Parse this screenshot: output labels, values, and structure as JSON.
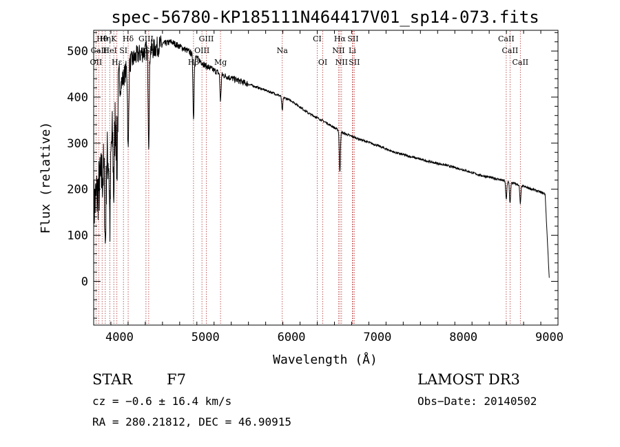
{
  "chart_data": {
    "type": "line",
    "title": "spec-56780-KP185111N464417V01_sp14-073.fits",
    "xlabel": "Wavelength (Å)",
    "ylabel": "Flux (relative)",
    "xlim": [
      3700,
      9100
    ],
    "ylim": [
      -95,
      545
    ],
    "xticks": [
      4000,
      5000,
      6000,
      7000,
      8000,
      9000
    ],
    "yticks": [
      0,
      100,
      200,
      300,
      400,
      500
    ],
    "grid": false,
    "series": [
      {
        "name": "flux",
        "continuum": [
          [
            3700,
            160
          ],
          [
            3800,
            230
          ],
          [
            3900,
            290
          ],
          [
            4000,
            420
          ],
          [
            4100,
            470
          ],
          [
            4200,
            490
          ],
          [
            4300,
            500
          ],
          [
            4400,
            505
          ],
          [
            4500,
            515
          ],
          [
            4600,
            520
          ],
          [
            4700,
            510
          ],
          [
            4800,
            500
          ],
          [
            4900,
            485
          ],
          [
            5000,
            468
          ],
          [
            5200,
            448
          ],
          [
            5500,
            428
          ],
          [
            5800,
            408
          ],
          [
            6000,
            392
          ],
          [
            6200,
            365
          ],
          [
            6400,
            345
          ],
          [
            6600,
            322
          ],
          [
            6800,
            308
          ],
          [
            7000,
            295
          ],
          [
            7200,
            280
          ],
          [
            7400,
            270
          ],
          [
            7600,
            260
          ],
          [
            7800,
            252
          ],
          [
            8000,
            242
          ],
          [
            8200,
            230
          ],
          [
            8400,
            222
          ],
          [
            8600,
            212
          ],
          [
            8800,
            200
          ],
          [
            8950,
            190
          ],
          [
            9000,
            0
          ]
        ],
        "absorption": [
          [
            3835,
            170
          ],
          [
            3889,
            160
          ],
          [
            3934,
            140
          ],
          [
            3970,
            130
          ],
          [
            4101,
            190
          ],
          [
            4340,
            200
          ],
          [
            4861,
            140
          ],
          [
            5175,
            60
          ],
          [
            5893,
            30
          ],
          [
            6563,
            90
          ],
          [
            8498,
            40
          ],
          [
            8542,
            45
          ],
          [
            8662,
            40
          ]
        ]
      }
    ],
    "lines": [
      {
        "label": "Hθ",
        "x": 3798,
        "row": 0
      },
      {
        "label": "Hη",
        "x": 3835,
        "row": 0
      },
      {
        "label": "K",
        "x": 3934,
        "row": 0
      },
      {
        "label": "Hδ",
        "x": 4101,
        "row": 0
      },
      {
        "label": "GIII",
        "x": 4308,
        "row": 0
      },
      {
        "label": "GIII",
        "x": 5010,
        "row": 0
      },
      {
        "label": "CI",
        "x": 6300,
        "row": 0
      },
      {
        "label": "Hα",
        "x": 6563,
        "row": 0
      },
      {
        "label": "SII",
        "x": 6716,
        "row": 0
      },
      {
        "label": "CaII",
        "x": 8498,
        "row": 0
      },
      {
        "label": "CaII",
        "x": 3760,
        "row": 1
      },
      {
        "label": "HeI",
        "x": 3889,
        "row": 1
      },
      {
        "label": "SI",
        "x": 4046,
        "row": 1
      },
      {
        "label": "Gr",
        "x": 4340,
        "row": 1
      },
      {
        "label": "OIII",
        "x": 4959,
        "row": 1
      },
      {
        "label": "Na",
        "x": 5893,
        "row": 1
      },
      {
        "label": "NII",
        "x": 6548,
        "row": 1
      },
      {
        "label": "Li",
        "x": 6708,
        "row": 1
      },
      {
        "label": "CaII",
        "x": 8542,
        "row": 1
      },
      {
        "label": "OII",
        "x": 3727,
        "row": 2
      },
      {
        "label": "Hε",
        "x": 3970,
        "row": 2
      },
      {
        "label": "Hβ",
        "x": 4861,
        "row": 2
      },
      {
        "label": "Mg",
        "x": 5175,
        "row": 2
      },
      {
        "label": "OI",
        "x": 6364,
        "row": 2
      },
      {
        "label": "NII",
        "x": 6583,
        "row": 2
      },
      {
        "label": "SII",
        "x": 6731,
        "row": 2
      },
      {
        "label": "CaII",
        "x": 8662,
        "row": 2
      }
    ]
  },
  "info": {
    "object_class": "STAR",
    "subclass": "F7",
    "survey": "LAMOST DR3",
    "cz": "cz = −0.6 ± 16.4 km/s",
    "obs_date": "Obs−Date: 20140502",
    "coords": "RA = 280.21812, DEC =  46.90915"
  }
}
